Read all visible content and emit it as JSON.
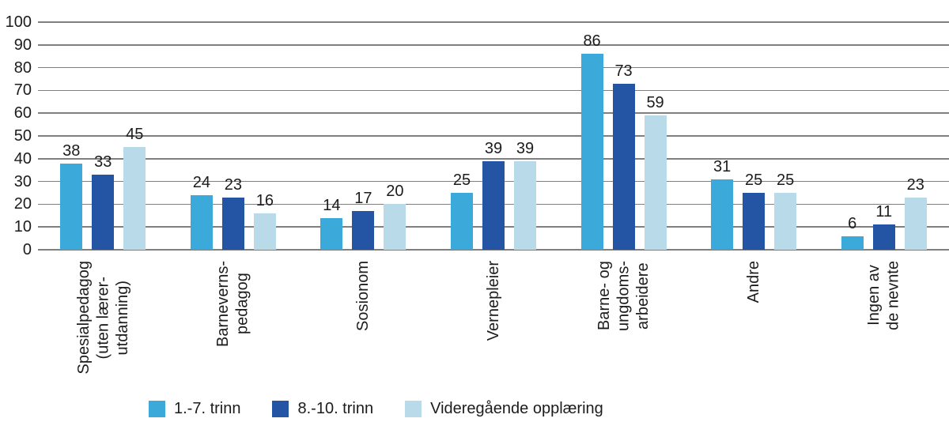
{
  "chart_data": {
    "type": "bar",
    "title": "",
    "xlabel": "",
    "ylabel": "",
    "categories": [
      "Spesialpedagog (uten lærer-utdanning)",
      "Barneverns-pedagog",
      "Sosionom",
      "Vernepleier",
      "Barne- og ungdoms-arbeidere",
      "Andre",
      "Ingen av de nevnte"
    ],
    "category_label_lines": [
      [
        "Spesialpedagog",
        "(uten lærer-",
        "utdanning)"
      ],
      [
        "Barneverns-",
        "pedagog"
      ],
      [
        "Sosionom"
      ],
      [
        "Vernepleier"
      ],
      [
        "Barne- og",
        "ungdoms-",
        "arbeidere"
      ],
      [
        "Andre"
      ],
      [
        "Ingen av",
        "de nevnte"
      ]
    ],
    "series": [
      {
        "name": "1.-7. trinn",
        "color": "#3BAADB",
        "values": [
          38,
          24,
          14,
          25,
          86,
          31,
          6
        ]
      },
      {
        "name": "8.-10. trinn",
        "color": "#2355A4",
        "values": [
          33,
          23,
          17,
          39,
          73,
          25,
          11
        ]
      },
      {
        "name": "Videregående opplæring",
        "color": "#B9DAE9",
        "values": [
          45,
          16,
          20,
          39,
          59,
          25,
          23
        ]
      }
    ],
    "ylim": [
      0,
      100
    ],
    "yticks": [
      0,
      10,
      20,
      30,
      40,
      50,
      60,
      70,
      80,
      90,
      100
    ],
    "grid": true,
    "gridline_color": "#7F7F7F",
    "text_color": "#1C1C1C",
    "value_labels": true,
    "legend_position": "bottom",
    "x_labels_rotated_degrees": 90
  }
}
